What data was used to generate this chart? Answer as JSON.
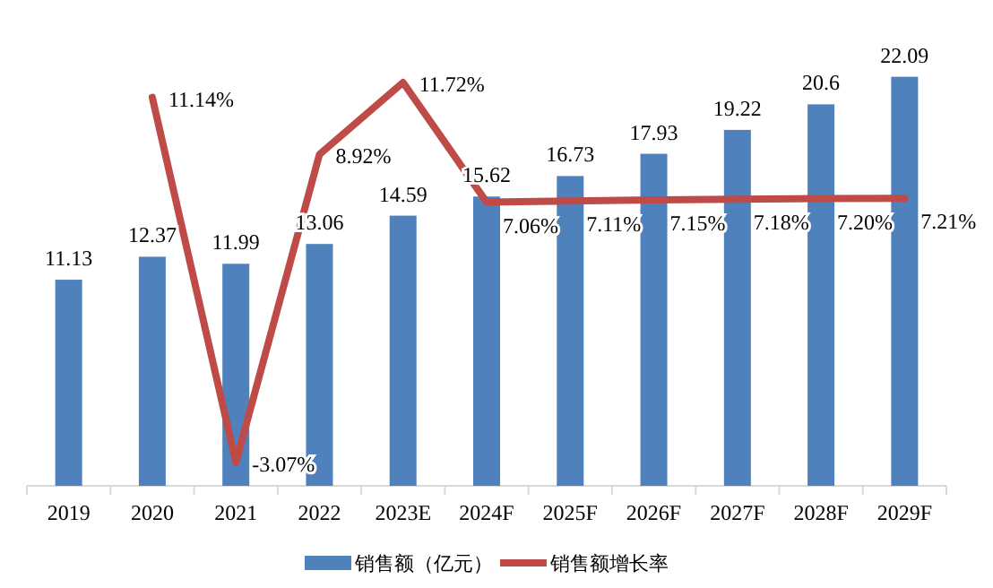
{
  "chart_data": {
    "type": "bar",
    "categories": [
      "2019",
      "2020",
      "2021",
      "2022",
      "2023E",
      "2024F",
      "2025F",
      "2026F",
      "2027F",
      "2028F",
      "2029F"
    ],
    "series": [
      {
        "name": "销售额（亿元）",
        "color": "#4f81bd",
        "values": [
          11.13,
          12.37,
          11.99,
          13.06,
          14.59,
          15.62,
          16.73,
          17.93,
          19.22,
          20.6,
          22.09
        ],
        "value_labels": [
          "11.13",
          "12.37",
          "11.99",
          "13.06",
          "14.59",
          "15.62",
          "16.73",
          "17.93",
          "19.22",
          "20.6",
          "22.09"
        ]
      },
      {
        "name": "销售额增长率",
        "type": "line",
        "axis": "y2",
        "color": "#be4b48",
        "values": [
          null,
          11.14,
          -3.07,
          8.92,
          11.72,
          7.06,
          7.11,
          7.15,
          7.18,
          7.2,
          7.21
        ],
        "value_labels": [
          null,
          "11.14%",
          "-3.07%",
          "8.92%",
          "11.72%",
          "7.06%",
          "7.11%",
          "7.15%",
          "7.18%",
          "7.20%",
          "7.21%"
        ]
      }
    ],
    "tick_labels": "x",
    "legend": "bottom"
  }
}
